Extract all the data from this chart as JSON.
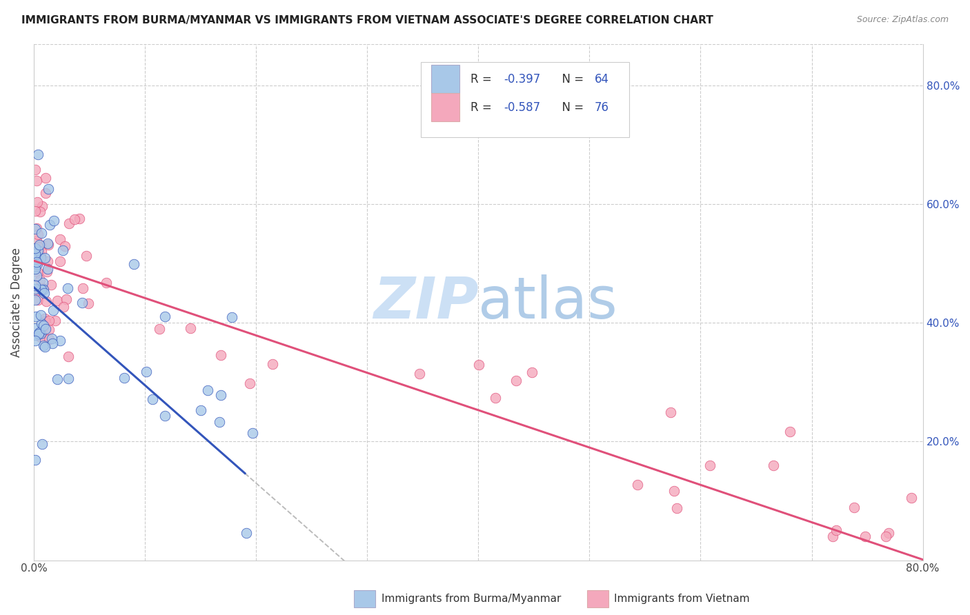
{
  "title": "IMMIGRANTS FROM BURMA/MYANMAR VS IMMIGRANTS FROM VIETNAM ASSOCIATE'S DEGREE CORRELATION CHART",
  "source": "Source: ZipAtlas.com",
  "xlabel_blue": "Immigrants from Burma/Myanmar",
  "xlabel_pink": "Immigrants from Vietnam",
  "ylabel": "Associate's Degree",
  "R_blue": -0.397,
  "N_blue": 64,
  "R_pink": -0.587,
  "N_pink": 76,
  "xlim": [
    0.0,
    0.8
  ],
  "ylim": [
    0.0,
    0.87
  ],
  "color_blue": "#a8c8e8",
  "color_pink": "#f4a8bc",
  "line_blue": "#3355bb",
  "line_pink": "#e0507a",
  "legend_text_color": "#3355bb",
  "watermark_color": "#cce0f5",
  "background_color": "#ffffff",
  "grid_color": "#cccccc",
  "blue_intercept": 0.46,
  "blue_slope": -1.65,
  "pink_intercept": 0.505,
  "pink_slope": -0.63
}
